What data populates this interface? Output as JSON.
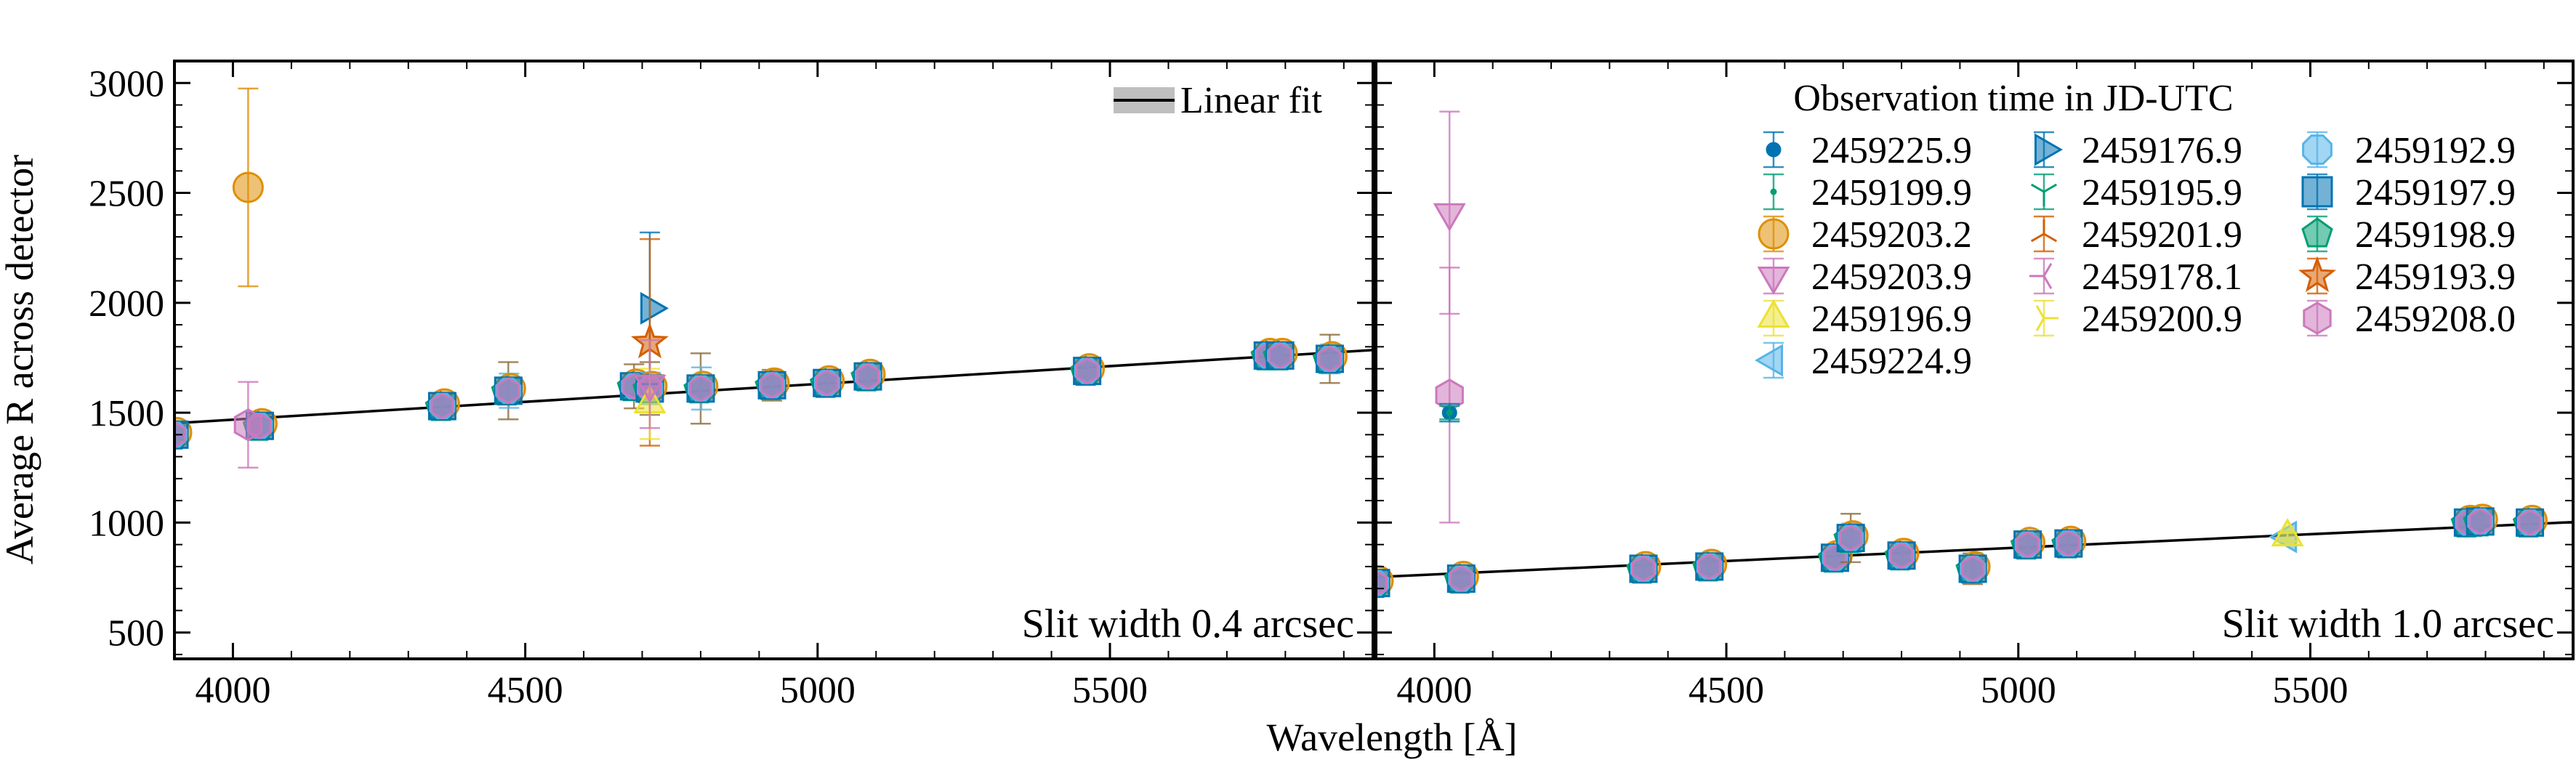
{
  "chart_data": {
    "type": "scatter",
    "xlabel": "Wavelength [Å]",
    "ylabel": "Average R across detector",
    "xlim": [
      3900,
      5950
    ],
    "ylim": [
      380,
      3100
    ],
    "x_ticks": [
      4000,
      4500,
      5000,
      5500
    ],
    "y_ticks": [
      500,
      1000,
      1500,
      2000,
      2500,
      3000
    ],
    "grid": false,
    "legend_title": "Observation time in JD-UTC",
    "legend_placement": "top-right of right panel",
    "fit_legend_label": "Linear fit",
    "fit_legend_placement": "top-right of left panel",
    "colors": {
      "blue": "#0173b2",
      "orange": "#de8f05",
      "green": "#029e73",
      "red": "#d55e00",
      "pink": "#cc78bc",
      "yellow": "#ece133",
      "lightblue": "#56b4e9"
    },
    "series": [
      {
        "name": "2459225.9",
        "marker": "point",
        "color": "#0173b2"
      },
      {
        "name": "2459199.9",
        "marker": "pixel",
        "color": "#029e73"
      },
      {
        "name": "2459203.2",
        "marker": "circle",
        "color": "#de8f05"
      },
      {
        "name": "2459203.9",
        "marker": "triangle-down",
        "color": "#cc78bc"
      },
      {
        "name": "2459196.9",
        "marker": "triangle-up",
        "color": "#ece133"
      },
      {
        "name": "2459224.9",
        "marker": "triangle-left",
        "color": "#56b4e9"
      },
      {
        "name": "2459176.9",
        "marker": "triangle-right",
        "color": "#0173b2"
      },
      {
        "name": "2459195.9",
        "marker": "tri-down",
        "color": "#029e73"
      },
      {
        "name": "2459201.9",
        "marker": "tri-up",
        "color": "#d55e00"
      },
      {
        "name": "2459178.1",
        "marker": "tri-left",
        "color": "#cc78bc"
      },
      {
        "name": "2459200.9",
        "marker": "tri-right",
        "color": "#ece133"
      },
      {
        "name": "2459192.9",
        "marker": "octagon",
        "color": "#56b4e9"
      },
      {
        "name": "2459197.9",
        "marker": "square",
        "color": "#0173b2"
      },
      {
        "name": "2459198.9",
        "marker": "pentagon",
        "color": "#029e73"
      },
      {
        "name": "2459193.9",
        "marker": "star",
        "color": "#d55e00"
      },
      {
        "name": "2459208.0",
        "marker": "hexagon",
        "color": "#cc78bc"
      }
    ],
    "panels": [
      {
        "note": "Slit width 0.4 arcsec",
        "fit": {
          "x": [
            3900,
            5950
          ],
          "y": [
            1452,
            1785
          ]
        },
        "cluster_points": [
          {
            "x": 3900,
            "y": 1400,
            "err": 40
          },
          {
            "x": 4046,
            "y": 1440,
            "err": 50
          },
          {
            "x": 4358,
            "y": 1530,
            "err": 50
          },
          {
            "x": 4471,
            "y": 1600,
            "err": 130
          },
          {
            "x": 4686,
            "y": 1620,
            "err": 100
          },
          {
            "x": 4713,
            "y": 1610,
            "err": 120
          },
          {
            "x": 4800,
            "y": 1610,
            "err": 160
          },
          {
            "x": 4922,
            "y": 1625,
            "err": 70
          },
          {
            "x": 5016,
            "y": 1635,
            "err": 60
          },
          {
            "x": 5086,
            "y": 1665,
            "err": 60
          },
          {
            "x": 5461,
            "y": 1690,
            "err": 50
          },
          {
            "x": 5770,
            "y": 1760,
            "err": 60
          },
          {
            "x": 5791,
            "y": 1760,
            "err": 60
          },
          {
            "x": 5876,
            "y": 1745,
            "err": 110
          }
        ],
        "outliers": [
          {
            "series": "2459203.2",
            "x": 4026,
            "y": 2525,
            "err": 450
          },
          {
            "series": "2459208.0",
            "x": 4026,
            "y": 1445,
            "err": 195
          },
          {
            "series": "2459176.9",
            "x": 4713,
            "y": 1975,
            "err": 345
          },
          {
            "series": "2459193.9",
            "x": 4713,
            "y": 1820,
            "err": 470
          },
          {
            "series": "2459196.9",
            "x": 4713,
            "y": 1540,
            "err": 160
          },
          {
            "series": "2459203.9",
            "x": 4713,
            "y": 1630,
            "err": 200
          }
        ]
      },
      {
        "note": "Slit width 1.0 arcsec",
        "fit": {
          "x": [
            3900,
            5950
          ],
          "y": [
            752,
            1002
          ]
        },
        "cluster_points": [
          {
            "x": 3900,
            "y": 725,
            "err": 30
          },
          {
            "x": 4046,
            "y": 745,
            "err": 30
          },
          {
            "x": 4358,
            "y": 790,
            "err": 35
          },
          {
            "x": 4471,
            "y": 800,
            "err": 35
          },
          {
            "x": 4686,
            "y": 840,
            "err": 45
          },
          {
            "x": 4713,
            "y": 930,
            "err": 110
          },
          {
            "x": 4800,
            "y": 850,
            "err": 40
          },
          {
            "x": 4922,
            "y": 790,
            "err": 70
          },
          {
            "x": 5016,
            "y": 900,
            "err": 40
          },
          {
            "x": 5086,
            "y": 905,
            "err": 40
          },
          {
            "x": 5770,
            "y": 1000,
            "err": 40
          },
          {
            "x": 5791,
            "y": 1005,
            "err": 40
          },
          {
            "x": 5876,
            "y": 1000,
            "err": 40
          }
        ],
        "outliers": [
          {
            "series": "2459203.9",
            "x": 4026,
            "y": 2410,
            "err": 460
          },
          {
            "series": "2459208.0",
            "x": 4026,
            "y": 1580,
            "err": 580
          },
          {
            "series": "2459225.9",
            "x": 4026,
            "y": 1500,
            "err": 40
          },
          {
            "series": "2459199.9",
            "x": 4026,
            "y": 1500,
            "err": 30
          },
          {
            "series": "2459224.9",
            "x": 5461,
            "y": 935,
            "err": 20
          },
          {
            "series": "2459196.9",
            "x": 5461,
            "y": 935,
            "err": 20
          }
        ]
      }
    ]
  }
}
